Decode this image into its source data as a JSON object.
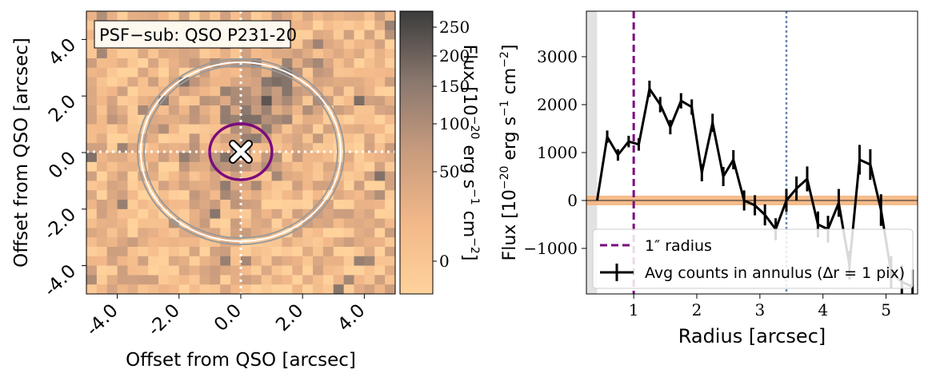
{
  "chart_data": [
    {
      "type": "heatmap",
      "title": "PSF−sub: QSO P231-20",
      "xlabel": "Offset from QSO [arcsec]",
      "ylabel": "Offset from QSO [arcsec]",
      "xlim": [
        -5,
        5
      ],
      "ylim": [
        -5,
        5
      ],
      "xticks": [
        -4,
        -2,
        0,
        2,
        4
      ],
      "xtick_labels": [
        "-4.0",
        "-2.0",
        "0.0",
        "2.0",
        "4.0"
      ],
      "yticks": [
        -4,
        -2,
        0,
        2,
        4
      ],
      "ytick_labels": [
        "-4.0",
        "-2.0",
        "0.0",
        "2.0",
        "4.0"
      ],
      "grid_size": 30,
      "colormap": "copper_r (low = light orange, high = dark grey)",
      "qso_marker": {
        "x": 0,
        "y": 0,
        "symbol": "white X"
      },
      "inner_circle": {
        "radius_arcsec": 1.0,
        "color": "#7b0a7e"
      },
      "outer_annulus": {
        "radii_arcsec": [
          3.2,
          3.4
        ],
        "color": "#9a9a9a"
      },
      "crosshair": {
        "style": "dotted white",
        "at": [
          0,
          0
        ]
      },
      "colorbar": {
        "label_parts": [
          "Flux [10",
          "−20",
          " erg s",
          "−1",
          " cm",
          "−2",
          "]"
        ],
        "min": -20,
        "max": 270,
        "ticks": [
          0,
          50,
          100,
          150,
          200,
          250
        ],
        "tick_labels": [
          "0",
          "50",
          "100",
          "150",
          "200",
          "250"
        ]
      }
    },
    {
      "type": "line",
      "xlabel": "Radius [arcsec]",
      "ylabel_parts": [
        "Flux [10",
        "−20",
        " erg s",
        "−1",
        " cm",
        "−2",
        "]"
      ],
      "xlim": [
        0.25,
        5.5
      ],
      "ylim": [
        -1950,
        3950
      ],
      "xticks": [
        1,
        2,
        3,
        4,
        5
      ],
      "xtick_labels": [
        "1",
        "2",
        "3",
        "4",
        "5"
      ],
      "yticks": [
        -1000,
        0,
        1000,
        2000,
        3000
      ],
      "ytick_labels": [
        "−1000",
        "0",
        "1000",
        "2000",
        "3000"
      ],
      "excluded_region": [
        0.25,
        0.42
      ],
      "zero_band": [
        -100,
        100
      ],
      "one_arcsec_line": 1.0,
      "annulus_line": 3.42,
      "series": [
        {
          "name": "Avg counts in annulus (∆r = 1 pix)",
          "x": [
            0.42,
            0.58,
            0.75,
            0.92,
            1.08,
            1.25,
            1.42,
            1.58,
            1.75,
            1.92,
            2.08,
            2.25,
            2.42,
            2.58,
            2.75,
            2.92,
            3.08,
            3.25,
            3.42,
            3.58,
            3.75,
            3.92,
            4.08,
            4.25,
            4.42,
            4.58,
            4.75,
            4.92,
            5.08,
            5.25,
            5.42
          ],
          "y": [
            0,
            1330,
            950,
            1230,
            1170,
            2330,
            2000,
            1530,
            2080,
            1950,
            580,
            1620,
            500,
            850,
            0,
            -100,
            -300,
            -600,
            0,
            250,
            450,
            -500,
            -600,
            -50,
            -1350,
            850,
            750,
            -200,
            -1500,
            -1700,
            -1800
          ],
          "yerr": [
            0,
            130,
            120,
            120,
            130,
            170,
            160,
            150,
            160,
            160,
            180,
            190,
            200,
            200,
            210,
            210,
            220,
            230,
            240,
            250,
            260,
            270,
            280,
            290,
            300,
            310,
            320,
            330,
            340,
            350,
            360
          ]
        }
      ],
      "legend": [
        {
          "label": "1″ radius",
          "style": "dashed purple"
        },
        {
          "label": "Avg counts in annulus (∆r = 1 pix)",
          "style": "black line with error bars"
        }
      ],
      "legend_position": "lower-right"
    }
  ]
}
